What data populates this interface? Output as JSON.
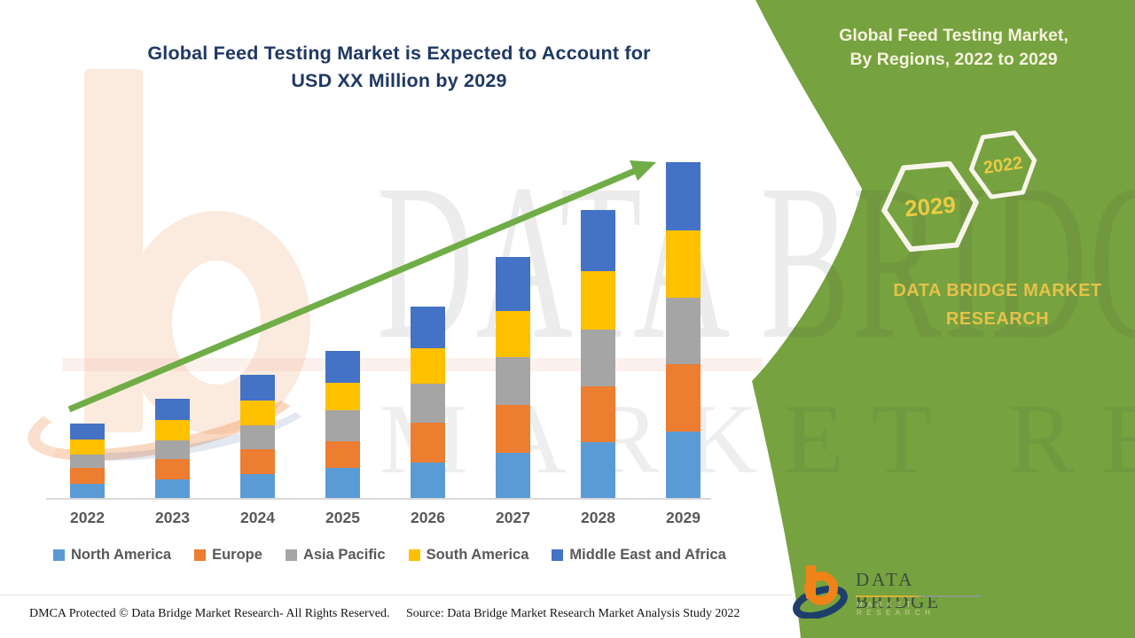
{
  "title": {
    "line1": "Global Feed Testing Market is Expected to Account for",
    "line2": "USD XX Million by 2029"
  },
  "band": {
    "heading_line1": "Global Feed Testing Market,",
    "heading_line2": "By Regions, 2022 to 2029",
    "hexagons": [
      {
        "label": "2029"
      },
      {
        "label": "2022"
      }
    ],
    "brand_line1": "DATA BRIDGE MARKET",
    "brand_line2": "RESEARCH"
  },
  "watermark": {
    "row1": "DATA BRIDGE",
    "row2": "MARKET RESEARCH"
  },
  "logo": {
    "wordmark": "DATA BRIDGE",
    "subtitle": "MARKET RESEARCH"
  },
  "footer": {
    "dmca": "DMCA Protected © Data Bridge Market Research- All Rights Reserved.",
    "source": "Source: Data Bridge Market Research Market Analysis Study 2022"
  },
  "colors": {
    "band_green": "#76A23F",
    "title_navy": "#1F3864",
    "axis_label_gray": "#595959",
    "gold_text": "#E5C24A",
    "hexagon_gold": "#EACB45",
    "trend_arrow_green": "#70AD47"
  },
  "chart_data": {
    "type": "bar",
    "stacked": true,
    "title": "Global Feed Testing Market is Expected to Account for USD XX Million by 2029",
    "xlabel": "",
    "ylabel": "",
    "units": "relative units (actual values hidden as USD XX Million)",
    "value_axis_visible": false,
    "grid": false,
    "legend_position": "bottom",
    "trend_arrow": true,
    "categories": [
      "2022",
      "2023",
      "2024",
      "2025",
      "2026",
      "2027",
      "2028",
      "2029"
    ],
    "series": [
      {
        "name": "North America",
        "color": "#5B9BD5",
        "values": [
          16,
          21,
          27,
          34,
          40,
          51,
          63,
          75
        ]
      },
      {
        "name": "Europe",
        "color": "#ED7D31",
        "values": [
          18,
          23,
          28,
          30,
          45,
          54,
          63,
          76
        ]
      },
      {
        "name": "Asia Pacific",
        "color": "#A5A5A5",
        "values": [
          15,
          21,
          27,
          35,
          44,
          54,
          64,
          75
        ]
      },
      {
        "name": "South America",
        "color": "#FFC000",
        "values": [
          17,
          23,
          28,
          31,
          40,
          52,
          66,
          76
        ]
      },
      {
        "name": "Middle East and Africa",
        "color": "#4472C4",
        "values": [
          18,
          24,
          29,
          36,
          47,
          61,
          69,
          77
        ]
      }
    ],
    "totals_estimated": [
      84,
      112,
      139,
      166,
      216,
      272,
      325,
      379
    ]
  }
}
